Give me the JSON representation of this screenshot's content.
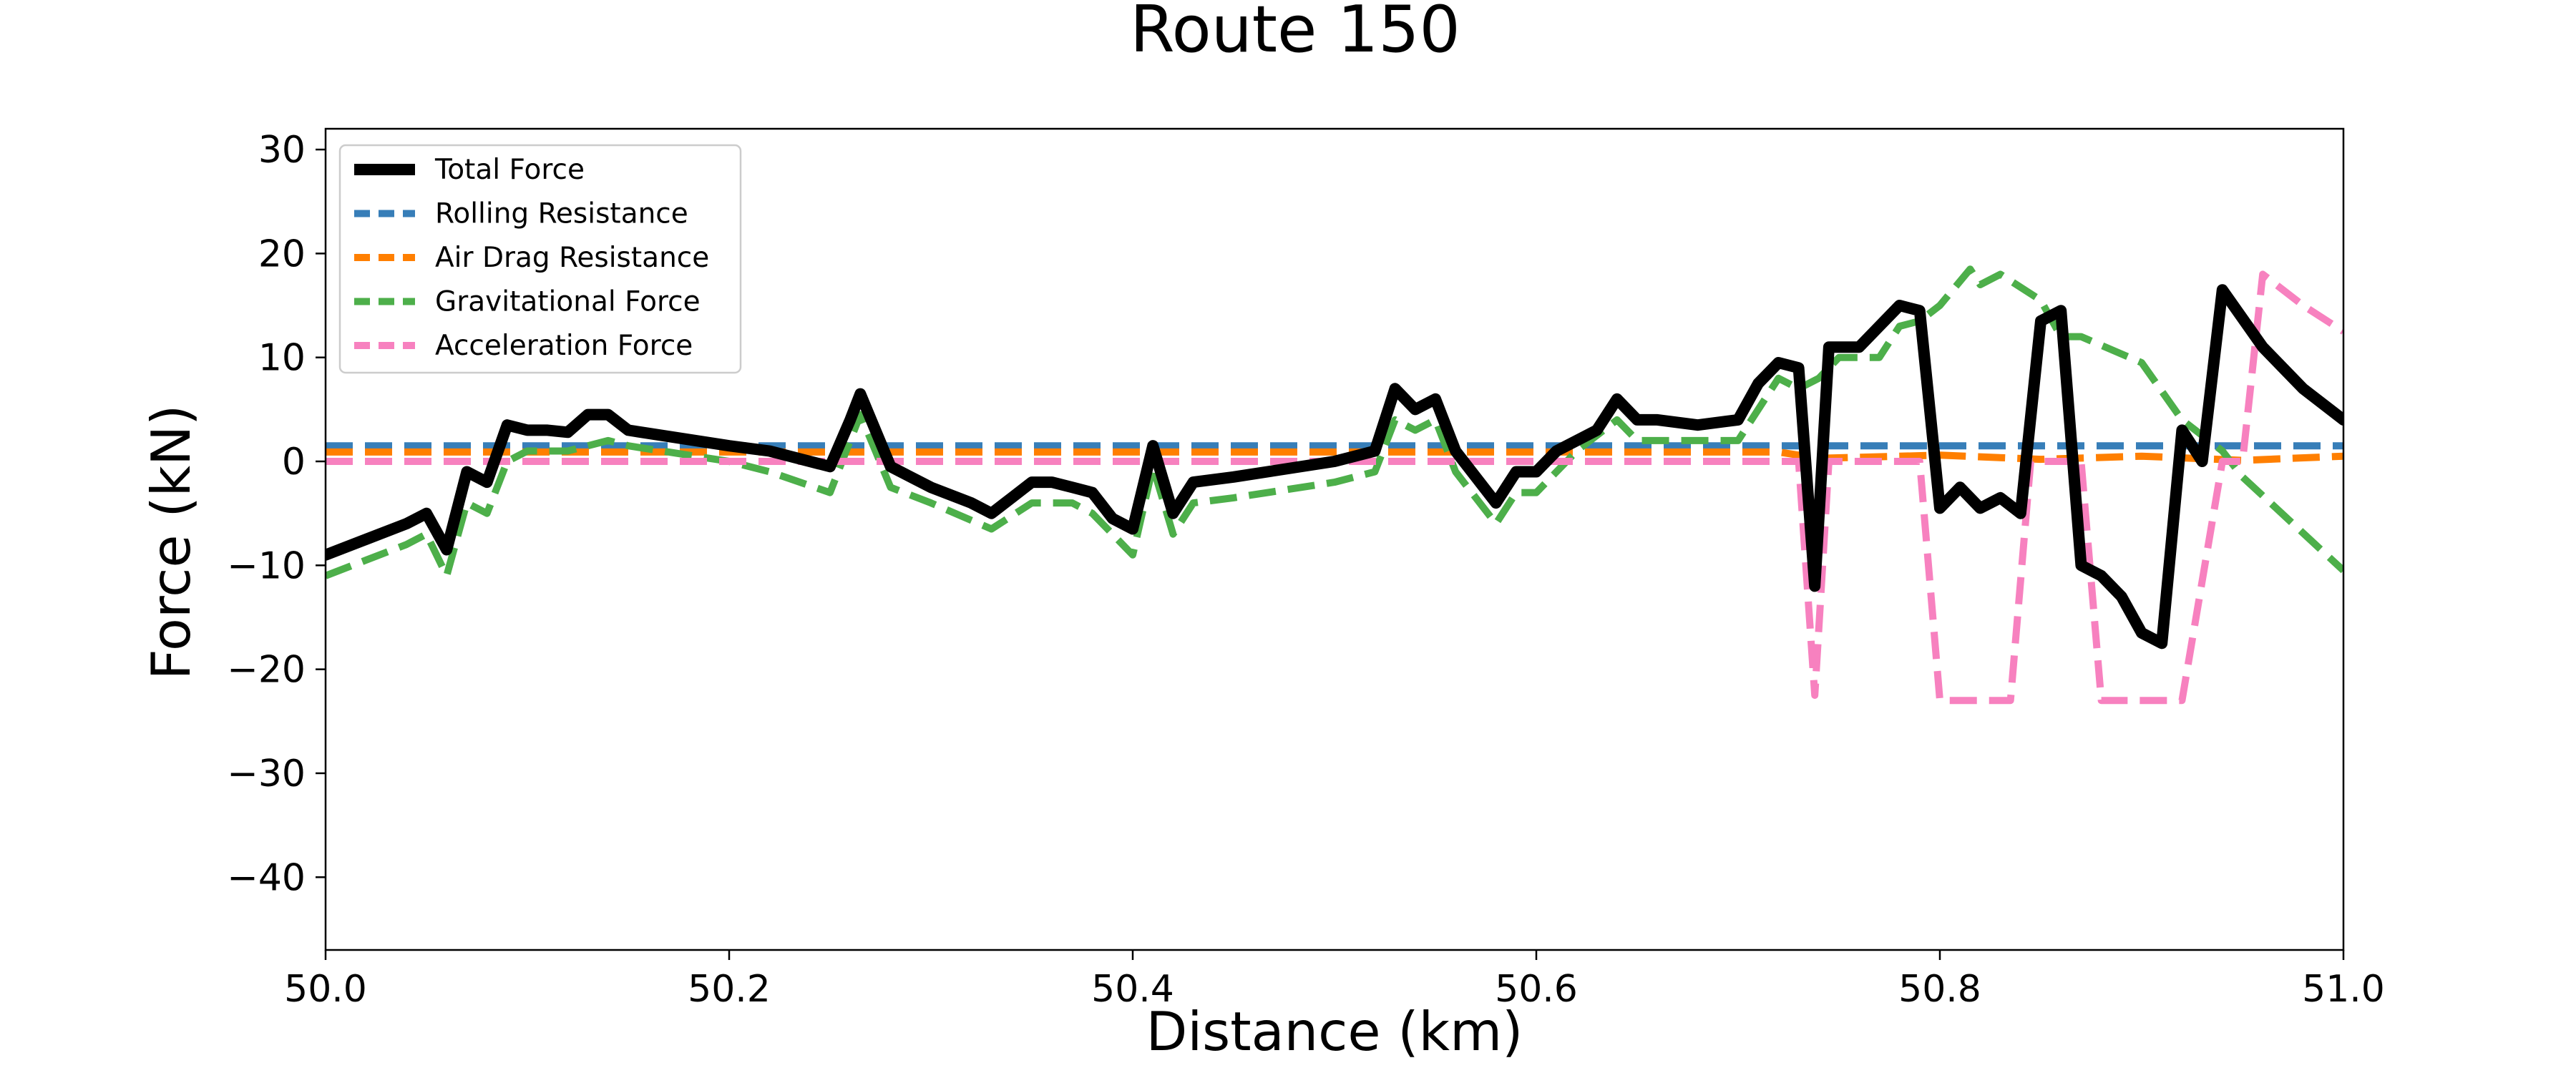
{
  "chart_data": {
    "type": "line",
    "title": "Route 150",
    "xlabel": "Distance (km)",
    "ylabel": "Force (kN)",
    "xlim": [
      50.0,
      51.0
    ],
    "ylim": [
      -47,
      32
    ],
    "xticks": [
      50.0,
      50.2,
      50.4,
      50.6,
      50.8,
      51.0
    ],
    "xtick_labels": [
      "50.0",
      "50.2",
      "50.4",
      "50.6",
      "50.8",
      "51.0"
    ],
    "yticks": [
      30,
      20,
      10,
      0,
      -10,
      -20,
      -30,
      -40
    ],
    "ytick_labels": [
      "30",
      "20",
      "10",
      "0",
      "−10",
      "−20",
      "−30",
      "−40"
    ],
    "grid": false,
    "legend_position": "top-left",
    "series": [
      {
        "name": "Rolling Resistance",
        "color": "#377eb8",
        "style": "dashed",
        "points": [
          [
            50.0,
            1.5
          ],
          [
            51.0,
            1.5
          ]
        ]
      },
      {
        "name": "Air Drag Resistance",
        "color": "#ff7f00",
        "style": "dashed",
        "points": [
          [
            50.0,
            0.9
          ],
          [
            50.72,
            0.9
          ],
          [
            50.74,
            0.3
          ],
          [
            50.8,
            0.6
          ],
          [
            50.85,
            0.2
          ],
          [
            50.9,
            0.5
          ],
          [
            50.95,
            0.1
          ],
          [
            51.0,
            0.5
          ]
        ]
      },
      {
        "name": "Gravitational Force",
        "color": "#4daf4a",
        "style": "dashed",
        "points": [
          [
            50.0,
            -11
          ],
          [
            50.02,
            -9.5
          ],
          [
            50.04,
            -8
          ],
          [
            50.05,
            -7
          ],
          [
            50.06,
            -11
          ],
          [
            50.07,
            -4
          ],
          [
            50.08,
            -5
          ],
          [
            50.09,
            0
          ],
          [
            50.1,
            1
          ],
          [
            50.12,
            1
          ],
          [
            50.14,
            2
          ],
          [
            50.15,
            1.5
          ],
          [
            50.2,
            0
          ],
          [
            50.22,
            -1
          ],
          [
            50.25,
            -3
          ],
          [
            50.265,
            4.5
          ],
          [
            50.28,
            -2.5
          ],
          [
            50.3,
            -4
          ],
          [
            50.33,
            -6.5
          ],
          [
            50.35,
            -4
          ],
          [
            50.37,
            -4
          ],
          [
            50.38,
            -5
          ],
          [
            50.4,
            -9
          ],
          [
            50.41,
            -0.5
          ],
          [
            50.42,
            -7
          ],
          [
            50.43,
            -4
          ],
          [
            50.45,
            -3.5
          ],
          [
            50.5,
            -2
          ],
          [
            50.52,
            -1
          ],
          [
            50.53,
            4
          ],
          [
            50.54,
            3
          ],
          [
            50.55,
            4
          ],
          [
            50.56,
            -1
          ],
          [
            50.58,
            -6
          ],
          [
            50.59,
            -3
          ],
          [
            50.6,
            -3
          ],
          [
            50.62,
            1
          ],
          [
            50.64,
            4
          ],
          [
            50.65,
            2
          ],
          [
            50.66,
            2
          ],
          [
            50.7,
            2
          ],
          [
            50.72,
            8
          ],
          [
            50.73,
            7
          ],
          [
            50.74,
            8
          ],
          [
            50.75,
            10
          ],
          [
            50.77,
            10
          ],
          [
            50.78,
            13
          ],
          [
            50.79,
            13.5
          ],
          [
            50.8,
            15
          ],
          [
            50.815,
            18.5
          ],
          [
            50.82,
            17
          ],
          [
            50.83,
            18
          ],
          [
            50.85,
            15.5
          ],
          [
            50.86,
            12
          ],
          [
            50.87,
            12
          ],
          [
            50.9,
            9.5
          ],
          [
            50.92,
            4
          ],
          [
            50.94,
            1
          ],
          [
            50.95,
            -1.5
          ],
          [
            51.0,
            -10.5
          ]
        ]
      },
      {
        "name": "Acceleration Force",
        "color": "#f781bf",
        "style": "dashed",
        "points": [
          [
            50.0,
            0
          ],
          [
            50.73,
            0
          ],
          [
            50.738,
            -22.5
          ],
          [
            50.745,
            0
          ],
          [
            50.79,
            0
          ],
          [
            50.8,
            -23
          ],
          [
            50.835,
            -23
          ],
          [
            50.845,
            0
          ],
          [
            50.87,
            0
          ],
          [
            50.88,
            -23
          ],
          [
            50.92,
            -23
          ],
          [
            50.94,
            0
          ],
          [
            50.95,
            0
          ],
          [
            50.96,
            18
          ],
          [
            50.98,
            15
          ],
          [
            51.0,
            12.5
          ]
        ]
      },
      {
        "name": "Total Force",
        "color": "#000000",
        "style": "solid",
        "points": [
          [
            50.0,
            -9
          ],
          [
            50.02,
            -7.5
          ],
          [
            50.04,
            -6
          ],
          [
            50.05,
            -5
          ],
          [
            50.06,
            -8.5
          ],
          [
            50.07,
            -1
          ],
          [
            50.08,
            -2
          ],
          [
            50.09,
            3.5
          ],
          [
            50.1,
            3
          ],
          [
            50.11,
            3
          ],
          [
            50.12,
            2.8
          ],
          [
            50.13,
            4.5
          ],
          [
            50.14,
            4.5
          ],
          [
            50.15,
            3
          ],
          [
            50.2,
            1.5
          ],
          [
            50.22,
            1
          ],
          [
            50.25,
            -0.5
          ],
          [
            50.26,
            4
          ],
          [
            50.265,
            6.5
          ],
          [
            50.28,
            -0.5
          ],
          [
            50.3,
            -2.5
          ],
          [
            50.32,
            -4
          ],
          [
            50.33,
            -5
          ],
          [
            50.34,
            -3.5
          ],
          [
            50.35,
            -2
          ],
          [
            50.36,
            -2
          ],
          [
            50.37,
            -2.5
          ],
          [
            50.38,
            -3
          ],
          [
            50.39,
            -5.5
          ],
          [
            50.4,
            -6.5
          ],
          [
            50.41,
            1.5
          ],
          [
            50.42,
            -5
          ],
          [
            50.43,
            -2
          ],
          [
            50.45,
            -1.5
          ],
          [
            50.5,
            0
          ],
          [
            50.52,
            1
          ],
          [
            50.53,
            7
          ],
          [
            50.54,
            5
          ],
          [
            50.55,
            6
          ],
          [
            50.56,
            1
          ],
          [
            50.58,
            -4
          ],
          [
            50.59,
            -1
          ],
          [
            50.6,
            -1
          ],
          [
            50.61,
            1
          ],
          [
            50.63,
            3
          ],
          [
            50.64,
            6
          ],
          [
            50.65,
            4
          ],
          [
            50.66,
            4
          ],
          [
            50.68,
            3.5
          ],
          [
            50.7,
            4
          ],
          [
            50.71,
            7.5
          ],
          [
            50.72,
            9.5
          ],
          [
            50.73,
            9
          ],
          [
            50.738,
            -12
          ],
          [
            50.745,
            11
          ],
          [
            50.76,
            11
          ],
          [
            50.77,
            13
          ],
          [
            50.78,
            15
          ],
          [
            50.79,
            14.5
          ],
          [
            50.8,
            -4.5
          ],
          [
            50.81,
            -2.5
          ],
          [
            50.82,
            -4.5
          ],
          [
            50.83,
            -3.5
          ],
          [
            50.84,
            -5
          ],
          [
            50.85,
            13.5
          ],
          [
            50.86,
            14.5
          ],
          [
            50.87,
            -10
          ],
          [
            50.88,
            -11
          ],
          [
            50.89,
            -13
          ],
          [
            50.9,
            -16.5
          ],
          [
            50.91,
            -17.5
          ],
          [
            50.92,
            3
          ],
          [
            50.93,
            0
          ],
          [
            50.94,
            16.5
          ],
          [
            50.96,
            11
          ],
          [
            50.98,
            7
          ],
          [
            51.0,
            4
          ]
        ]
      }
    ],
    "legend_order": [
      "Total Force",
      "Rolling Resistance",
      "Air Drag Resistance",
      "Gravitational Force",
      "Acceleration Force"
    ]
  }
}
